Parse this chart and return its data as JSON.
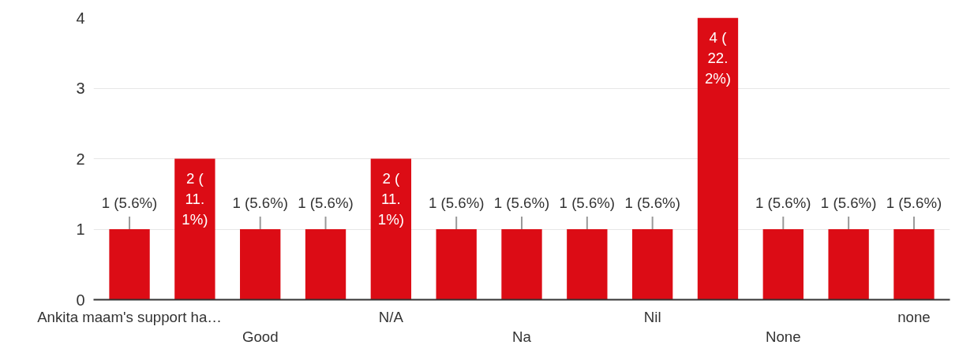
{
  "chart_data": {
    "type": "bar",
    "categories": [
      "Ankita maam's support ha…",
      null,
      "Good",
      null,
      "N/A",
      null,
      "Na",
      null,
      "Nil",
      null,
      "None",
      null,
      "none"
    ],
    "values": [
      1,
      2,
      1,
      1,
      2,
      1,
      1,
      1,
      1,
      4,
      1,
      1,
      1
    ],
    "value_labels": [
      "1 (5.6%)",
      "2 (11.1%)",
      "1 (5.6%)",
      "1 (5.6%)",
      "2 (11.1%)",
      "1 (5.6%)",
      "1 (5.6%)",
      "1 (5.6%)",
      "1 (5.6%)",
      "4 (22.2%)",
      "1 (5.6%)",
      "1 (5.6%)",
      "1 (5.6%)"
    ],
    "color": "#dc0c15",
    "ylim": [
      0,
      4
    ],
    "yticks": [
      0,
      1,
      2,
      3,
      4
    ],
    "grid": "y"
  }
}
